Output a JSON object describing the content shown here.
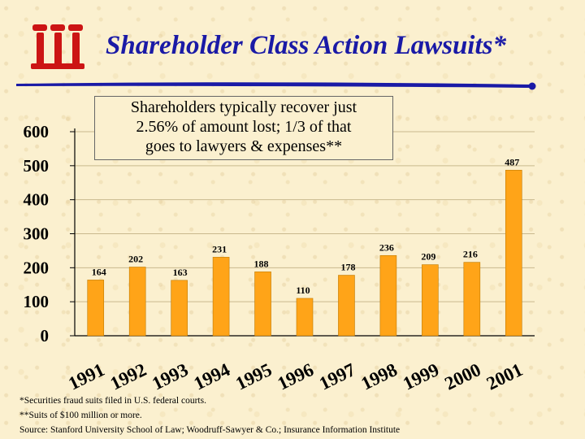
{
  "title": "Shareholder Class Action Lawsuits*",
  "logo_icon": "iii-logo",
  "accent_color": "#1a1aa6",
  "bar_color": "#ffa418",
  "callout": {
    "line1": "Shareholders typically recover just",
    "line2": "2.56% of amount lost; 1/3 of that",
    "line3": "goes to lawyers & expenses**"
  },
  "footnotes": {
    "note1": "*Securities fraud suits filed in U.S. federal courts.",
    "note2": "**Suits of $100 million or more.",
    "source": "Source: Stanford University School of Law; Woodruff-Sawyer & Co.; Insurance Information Institute"
  },
  "chart_data": {
    "type": "bar",
    "categories": [
      "1991",
      "1992",
      "1993",
      "1994",
      "1995",
      "1996",
      "1997",
      "1998",
      "1999",
      "2000",
      "2001"
    ],
    "values": [
      164,
      202,
      163,
      231,
      188,
      110,
      178,
      236,
      209,
      216,
      487
    ],
    "ylim": [
      0,
      600
    ],
    "yticks": [
      0,
      100,
      200,
      300,
      400,
      500,
      600
    ],
    "grid": true,
    "legend": "none"
  }
}
